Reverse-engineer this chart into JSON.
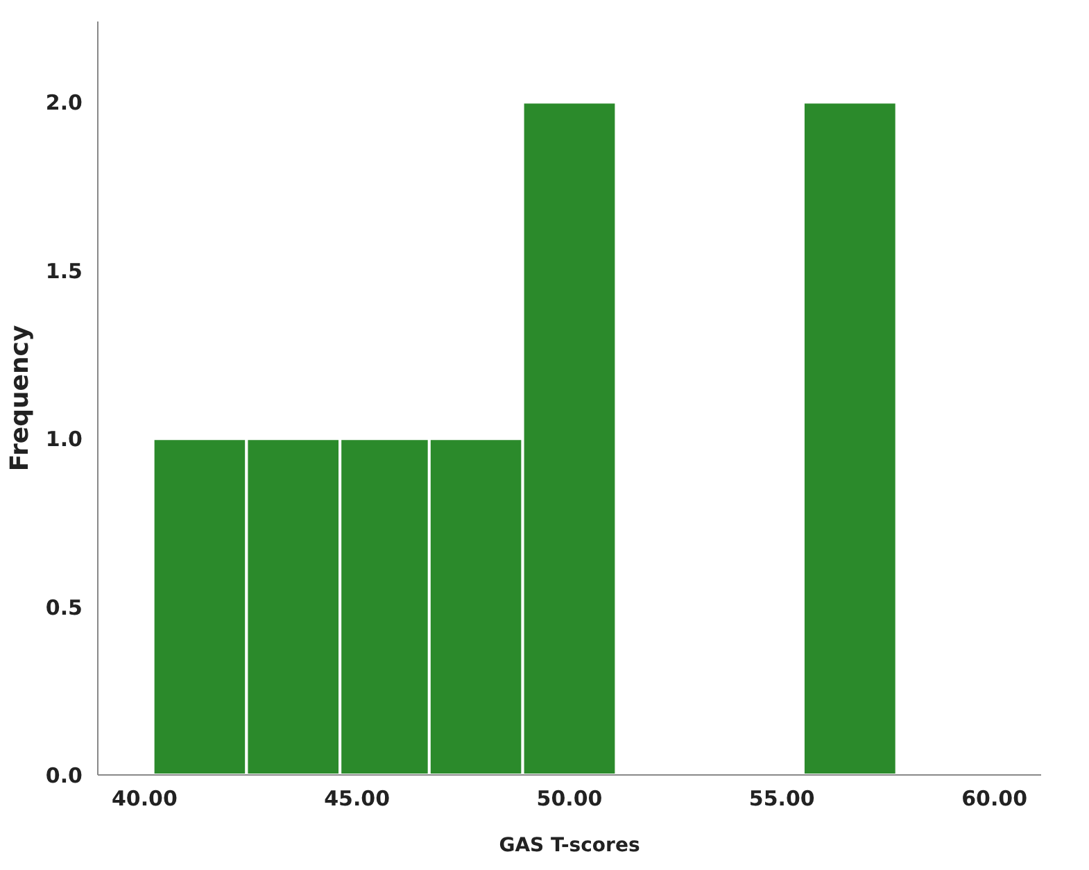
{
  "chart_data": {
    "type": "histogram",
    "xlabel": "GAS T-scores",
    "ylabel": "Frequency",
    "bins": [
      40.2,
      42.4,
      44.6,
      46.7,
      48.9,
      51.1,
      55.5,
      57.7
    ],
    "values": [
      1,
      1,
      1,
      1,
      2,
      0,
      2
    ],
    "color": "#2b8a2b",
    "xlim": [
      38.9,
      61.1
    ],
    "xticks": [
      {
        "value": 40,
        "label": "40.00"
      },
      {
        "value": 45,
        "label": "45.00"
      },
      {
        "value": 50,
        "label": "50.00"
      },
      {
        "value": 55,
        "label": "55.00"
      },
      {
        "value": 60,
        "label": "60.00"
      }
    ],
    "ylim": [
      0,
      2.24
    ],
    "yticks": [
      {
        "value": 0,
        "label": "0.0"
      },
      {
        "value": 0.5,
        "label": "0.5"
      },
      {
        "value": 1,
        "label": "1.0"
      },
      {
        "value": 1.5,
        "label": "1.5"
      },
      {
        "value": 2,
        "label": "2.0"
      }
    ]
  }
}
